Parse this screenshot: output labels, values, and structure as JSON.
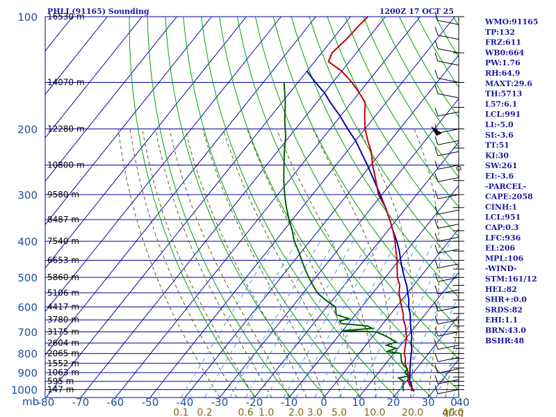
{
  "header": {
    "station": "PHLI (91165) Sounding",
    "time": "1200Z 17 OCT 25"
  },
  "indices": [
    "WMO:91165",
    "TP:132",
    "FRZ:611",
    "WB0:664",
    "PW:1.76",
    "RH:64.9",
    "MAXT:29.6",
    "TH:5713",
    "L57:6.1",
    "LCL:991",
    "LI:-5.0",
    "SI:-3.6",
    "TT:51",
    "KI:30",
    "SW:261",
    "EI:-3.6",
    "-PARCEL-",
    "CAPE:2058",
    "CINH:1",
    "LCL:951",
    "CAP:0.3",
    "LFC:936",
    "EL:206",
    "MPL:106",
    "-WIND-",
    "STM:161/12",
    "HEL:82",
    "SHR+:0.0",
    "SRDS:82",
    "EHI:1.1",
    "BRN:43.0",
    "BSHR:48"
  ],
  "colors": {
    "temperature": "#c00000",
    "dewpoint": "#006000",
    "parcel": "#0000a8",
    "isobar": "#0000a0",
    "isotherm": "#0000a0",
    "dry_adiabat": "#00a000",
    "moist_adiabat": "#5a5a1a",
    "mixing_ratio": "#3aa0e0",
    "pressure_labels": "#1a4f9f",
    "mixing_labels": "#7a6a10"
  },
  "chart_data": {
    "type": "skew-t",
    "title": "PHLI (91165) Sounding",
    "xlabel": "",
    "ylabel": "mb",
    "pressure_levels": [
      100,
      200,
      300,
      400,
      500,
      600,
      700,
      800,
      900,
      1000
    ],
    "temperature_ticks": [
      -80,
      -70,
      -60,
      -50,
      -40,
      -30,
      -20,
      -10,
      0,
      10,
      20,
      30,
      40
    ],
    "mixing_ratio_ticks": [
      "0.1",
      "0.2",
      "0.6",
      "1.0",
      "2.0",
      "3.0",
      "5.0",
      "10.0",
      "20.0",
      "40.0",
      "g/kg"
    ],
    "height_labels": [
      {
        "pressure": 100,
        "label": "16530 m"
      },
      {
        "pressure": 150,
        "label": "14070 m"
      },
      {
        "pressure": 200,
        "label": "12280 m"
      },
      {
        "pressure": 250,
        "label": "10800 m"
      },
      {
        "pressure": 300,
        "label": "9580 m"
      },
      {
        "pressure": 350,
        "label": "8487 m"
      },
      {
        "pressure": 400,
        "label": "7540 m"
      },
      {
        "pressure": 450,
        "label": "6653 m"
      },
      {
        "pressure": 500,
        "label": "5860 m"
      },
      {
        "pressure": 550,
        "label": "5106 m"
      },
      {
        "pressure": 600,
        "label": "4417 m"
      },
      {
        "pressure": 650,
        "label": "3780 m"
      },
      {
        "pressure": 700,
        "label": "3175 m"
      },
      {
        "pressure": 750,
        "label": "2604 m"
      },
      {
        "pressure": 800,
        "label": "2065 m"
      },
      {
        "pressure": 850,
        "label": "1552 m"
      },
      {
        "pressure": 900,
        "label": "1063 m"
      },
      {
        "pressure": 950,
        "label": "595 m"
      },
      {
        "pressure": 1000,
        "label": "147 m"
      }
    ],
    "temperature_profile": [
      [
        1010,
        24.5
      ],
      [
        1000,
        24.0
      ],
      [
        975,
        22.0
      ],
      [
        950,
        20.5
      ],
      [
        925,
        19.5
      ],
      [
        900,
        18.5
      ],
      [
        875,
        17.0
      ],
      [
        850,
        15.5
      ],
      [
        825,
        14.5
      ],
      [
        800,
        13.0
      ],
      [
        775,
        12.0
      ],
      [
        750,
        11.0
      ],
      [
        725,
        10.0
      ],
      [
        700,
        8.5
      ],
      [
        675,
        7.0
      ],
      [
        650,
        5.0
      ],
      [
        625,
        3.5
      ],
      [
        600,
        1.5
      ],
      [
        575,
        -0.5
      ],
      [
        550,
        -2.5
      ],
      [
        525,
        -4.0
      ],
      [
        500,
        -6.5
      ],
      [
        475,
        -8.5
      ],
      [
        450,
        -10.5
      ],
      [
        425,
        -13.0
      ],
      [
        400,
        -15.5
      ],
      [
        375,
        -18.5
      ],
      [
        350,
        -22.0
      ],
      [
        325,
        -26.0
      ],
      [
        300,
        -31.0
      ],
      [
        275,
        -35.0
      ],
      [
        250,
        -39.5
      ],
      [
        230,
        -43.0
      ],
      [
        215,
        -46.5
      ],
      [
        200,
        -50.0
      ],
      [
        185,
        -53.0
      ],
      [
        170,
        -56.0
      ],
      [
        160,
        -60.0
      ],
      [
        150,
        -64.5
      ],
      [
        140,
        -70.0
      ],
      [
        132,
        -76.0
      ],
      [
        125,
        -77.0
      ],
      [
        115,
        -76.0
      ],
      [
        105,
        -75.5
      ],
      [
        100,
        -75.0
      ]
    ],
    "dewpoint_profile": [
      [
        1010,
        21.5
      ],
      [
        1000,
        21.0
      ],
      [
        975,
        20.0
      ],
      [
        950,
        19.2
      ],
      [
        930,
        17.0
      ],
      [
        920,
        19.5
      ],
      [
        900,
        17.5
      ],
      [
        880,
        17.5
      ],
      [
        860,
        15.5
      ],
      [
        840,
        14.0
      ],
      [
        820,
        13.0
      ],
      [
        800,
        12.0
      ],
      [
        790,
        7.5
      ],
      [
        775,
        9.5
      ],
      [
        760,
        6.0
      ],
      [
        745,
        8.0
      ],
      [
        720,
        4.0
      ],
      [
        700,
        0.0
      ],
      [
        695,
        -10.0
      ],
      [
        685,
        -2.0
      ],
      [
        675,
        -4.0
      ],
      [
        665,
        -12.0
      ],
      [
        655,
        -13.0
      ],
      [
        645,
        -11.0
      ],
      [
        630,
        -15.5
      ],
      [
        600,
        -17.5
      ],
      [
        575,
        -22.0
      ],
      [
        550,
        -26.0
      ],
      [
        525,
        -29.0
      ],
      [
        500,
        -32.0
      ],
      [
        475,
        -35.0
      ],
      [
        450,
        -38.0
      ],
      [
        425,
        -41.0
      ],
      [
        400,
        -44.5
      ],
      [
        375,
        -47.5
      ],
      [
        350,
        -51.0
      ],
      [
        325,
        -54.5
      ],
      [
        300,
        -58.0
      ],
      [
        275,
        -61.5
      ],
      [
        250,
        -65.0
      ],
      [
        230,
        -68.0
      ],
      [
        210,
        -71.0
      ],
      [
        190,
        -75.0
      ],
      [
        170,
        -79.0
      ],
      [
        150,
        -84.0
      ]
    ],
    "parcel_profile": [
      [
        1010,
        24.5
      ],
      [
        1000,
        23.5
      ],
      [
        975,
        22.5
      ],
      [
        950,
        21.0
      ],
      [
        925,
        20.0
      ],
      [
        900,
        19.0
      ],
      [
        875,
        18.0
      ],
      [
        850,
        17.0
      ],
      [
        825,
        16.0
      ],
      [
        800,
        15.0
      ],
      [
        775,
        14.0
      ],
      [
        750,
        12.5
      ],
      [
        725,
        11.5
      ],
      [
        700,
        10.0
      ],
      [
        675,
        8.5
      ],
      [
        650,
        7.0
      ],
      [
        625,
        5.5
      ],
      [
        600,
        3.5
      ],
      [
        575,
        2.0
      ],
      [
        550,
        0.0
      ],
      [
        525,
        -2.0
      ],
      [
        500,
        -4.5
      ],
      [
        475,
        -7.0
      ],
      [
        450,
        -9.5
      ],
      [
        425,
        -12.0
      ],
      [
        400,
        -15.0
      ],
      [
        375,
        -18.5
      ],
      [
        350,
        -22.0
      ],
      [
        325,
        -26.0
      ],
      [
        300,
        -30.5
      ],
      [
        275,
        -35.5
      ],
      [
        250,
        -41.0
      ],
      [
        230,
        -46.0
      ],
      [
        215,
        -50.0
      ],
      [
        200,
        -55.0
      ],
      [
        185,
        -60.0
      ],
      [
        170,
        -66.0
      ],
      [
        160,
        -70.0
      ],
      [
        150,
        -75.0
      ],
      [
        140,
        -80.0
      ]
    ],
    "xlim": [
      -80,
      40
    ],
    "ylim": [
      1050,
      100
    ],
    "grid": true,
    "legend": "none"
  }
}
